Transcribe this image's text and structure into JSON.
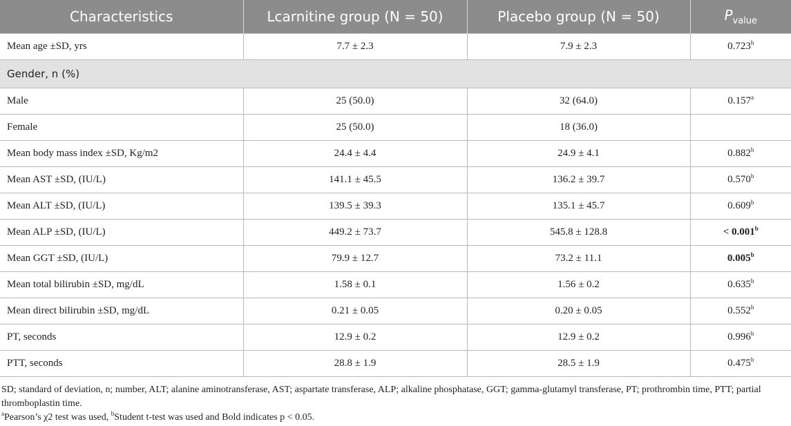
{
  "table": {
    "headers": {
      "characteristics": "Characteristics",
      "lcarnitine": "Lcarnitine group (N = 50)",
      "placebo": "Placebo group (N = 50)",
      "p_main": "P",
      "p_sub": "value"
    },
    "rows": {
      "age": {
        "label": "Mean age ±SD, yrs",
        "lcar": "7.7 ± 2.3",
        "plac": "7.9 ± 2.3",
        "p": "0.723",
        "sup": "b"
      },
      "gender": {
        "label": "Gender, n (%)"
      },
      "male": {
        "label": "Male",
        "lcar": "25 (50.0)",
        "plac": "32 (64.0)",
        "p": "0.157",
        "sup": "a"
      },
      "female": {
        "label": "Female",
        "lcar": "25 (50.0)",
        "plac": "18 (36.0)"
      },
      "bmi": {
        "label": "Mean body mass index ±SD, Kg/m2",
        "lcar": "24.4 ± 4.4",
        "plac": "24.9 ± 4.1",
        "p": "0.882",
        "sup": "b"
      },
      "ast": {
        "label": "Mean AST ±SD, (IU/L)",
        "lcar": "141.1 ± 45.5",
        "plac": "136.2 ± 39.7",
        "p": "0.570",
        "sup": "b"
      },
      "alt": {
        "label": "Mean ALT ±SD, (IU/L)",
        "lcar": "139.5 ± 39.3",
        "plac": "135.1 ± 45.7",
        "p": "0.609",
        "sup": "b"
      },
      "alp": {
        "label": "Mean ALP ±SD, (IU/L)",
        "lcar": "449.2 ± 73.7",
        "plac": "545.8 ± 128.8",
        "p": "< 0.001",
        "sup": "b"
      },
      "ggt": {
        "label": "Mean GGT ±SD, (IU/L)",
        "lcar": "79.9 ± 12.7",
        "plac": "73.2 ± 11.1",
        "p": "0.005",
        "sup": "b"
      },
      "tbil": {
        "label": "Mean total bilirubin ±SD, mg/dL",
        "lcar": "1.58 ± 0.1",
        "plac": "1.56 ± 0.2",
        "p": "0.635",
        "sup": "b"
      },
      "dbil": {
        "label": "Mean direct bilirubin ±SD, mg/dL",
        "lcar": "0.21 ± 0.05",
        "plac": "0.20 ± 0.05",
        "p": "0.552",
        "sup": "b"
      },
      "pt": {
        "label": "PT, seconds",
        "lcar": "12.9 ± 0.2",
        "plac": "12.9 ± 0.2",
        "p": "0.996",
        "sup": "b"
      },
      "ptt": {
        "label": "PTT, seconds",
        "lcar": "28.8 ± 1.9",
        "plac": "28.5 ± 1.9",
        "p": "0.475",
        "sup": "b"
      }
    }
  },
  "footnotes": {
    "abbreviations": "SD; standard of deviation, n; number, ALT; alanine aminotransferase, AST; aspartate transferase, ALP; alkaline phosphatase, GGT; gamma-glutamyl transferase, PT; prothrombin time, PTT; partial thromboplastin time.",
    "sup_a": "a",
    "note_a": "Pearson’s χ2 test was used, ",
    "sup_b": "b",
    "note_b": "Student t-test was used and Bold indicates p < 0.05."
  }
}
